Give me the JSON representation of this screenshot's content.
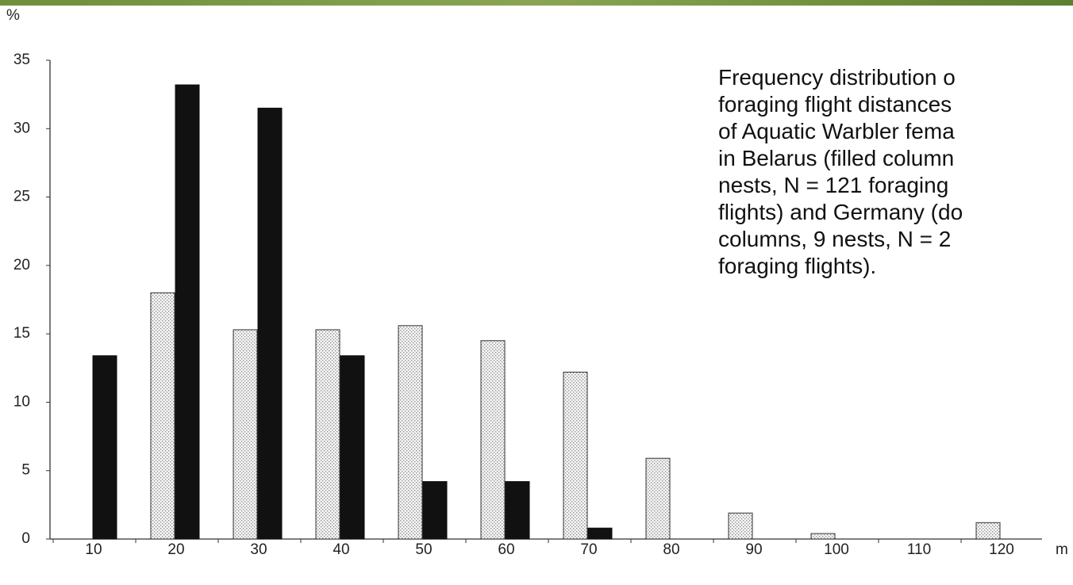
{
  "chart_data": {
    "type": "bar",
    "y_label": "%",
    "x_label": "m",
    "annotation_lines": [
      "Frequency distribution o",
      "foraging flight distances",
      "of Aquatic Warbler fema",
      "in Belarus (filled column",
      "nests, N = 121 foraging",
      "flights) and Germany (do",
      "columns, 9 nests, N = 2",
      "foraging flights)."
    ],
    "categories": [
      "10",
      "20",
      "30",
      "40",
      "50",
      "60",
      "70",
      "80",
      "90",
      "100",
      "110",
      "120"
    ],
    "series": [
      {
        "color": "#d6d6d6",
        "pattern": "dotted",
        "values": [
          0,
          18,
          15.3,
          15.3,
          15.6,
          14.5,
          12.2,
          5.9,
          1.9,
          0.4,
          0,
          1.2
        ]
      },
      {
        "color": "#111111",
        "pattern": "solid",
        "values": [
          13.4,
          33.2,
          31.5,
          13.4,
          4.2,
          4.2,
          0.8,
          0,
          0,
          0,
          0,
          0
        ]
      }
    ],
    "ylim": [
      0,
      35
    ],
    "yticks": [
      0,
      5,
      10,
      15,
      20,
      25,
      30,
      35
    ],
    "grid": false
  }
}
